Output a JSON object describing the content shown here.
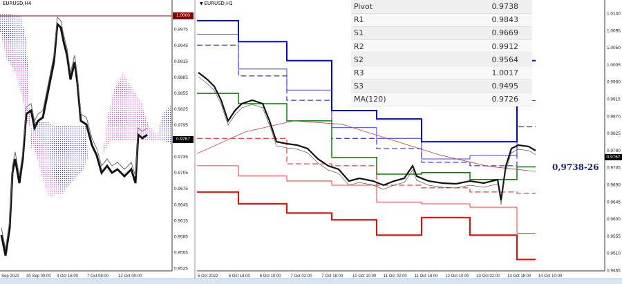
{
  "left_chart": {
    "title": "EURUSD,H4",
    "y_ticks": [
      "0.9975",
      "0.9945",
      "0.9915",
      "0.9885",
      "0.9855",
      "0.9825",
      "0.9795",
      "0.9735",
      "0.9705",
      "0.9675",
      "0.9645",
      "0.9615",
      "0.9585",
      "0.9555",
      "0.9525"
    ],
    "x_ticks": [
      "Sep 2022",
      "30 Sep 00:00",
      "4 Oct 16:00",
      "7 Oct 08:00",
      "12 Oct 00:00"
    ],
    "level_label": "1.0000",
    "current_price": "0.9767",
    "colors": {
      "level_line": "#c08080",
      "cloud_bull": "#0000ff",
      "cloud_bear": "#ff00ff"
    }
  },
  "right_chart": {
    "title": "EURUSD,H1",
    "y_ticks": [
      "1.0140",
      "1.0095",
      "1.0050",
      "1.0005",
      "0.9960",
      "0.9915",
      "0.9870",
      "0.9825",
      "0.9780",
      "0.9735",
      "0.9690",
      "0.9645",
      "0.9600",
      "0.9555",
      "0.9510",
      "0.9465"
    ],
    "x_ticks": [
      "5 Oct 2022",
      "5 Oct 18:00",
      "6 Oct 10:00",
      "7 Oct 02:00",
      "7 Oct 18:00",
      "10 Oct 10:00",
      "11 Oct 02:00",
      "11 Oct 18:00",
      "12 Oct 10:00",
      "13 Oct 02:00",
      "13 Oct 18:00",
      "14 Oct 10:00"
    ],
    "current_price": "0.9767",
    "range_label": "0,9738-26",
    "pivot_table": [
      {
        "label": "Pivot",
        "value": "0.9738"
      },
      {
        "label": "R1",
        "value": "0.9843"
      },
      {
        "label": "S1",
        "value": "0.9669"
      },
      {
        "label": "R2",
        "value": "0.9912"
      },
      {
        "label": "S2",
        "value": "0.9564"
      },
      {
        "label": "R3",
        "value": "1.0017"
      },
      {
        "label": "S3",
        "value": "0.9495"
      },
      {
        "label": "MA(120)",
        "value": "0.9726"
      }
    ]
  },
  "chart_data": {
    "type": "line",
    "title": "EURUSD,H1",
    "ylim": [
      0.9465,
      1.014
    ],
    "series": [
      {
        "name": "R3",
        "color": "#0000ff",
        "values": [
          1.0122,
          1.0067,
          1.0017,
          0.9886,
          0.9864,
          0.9804,
          0.9804,
          1.0017
        ]
      },
      {
        "name": "R2",
        "color": "#0000ff",
        "values": [
          1.0086,
          0.9995,
          0.994,
          0.9841,
          0.9813,
          0.9759,
          0.9768,
          0.9912
        ]
      },
      {
        "name": "R1",
        "color": "#0000ff",
        "values": [
          1.0058,
          0.9977,
          0.9913,
          0.9813,
          0.9786,
          0.975,
          0.9741,
          0.9843
        ]
      },
      {
        "name": "Pivot",
        "color": "#008000",
        "values": [
          0.9931,
          0.9904,
          0.9859,
          0.9763,
          0.9719,
          0.9723,
          0.9705,
          0.9738
        ]
      },
      {
        "name": "S1",
        "color": "#ff0000",
        "values": [
          0.9813,
          0.9813,
          0.9746,
          0.9741,
          0.969,
          0.9683,
          0.9672,
          0.9669
        ]
      },
      {
        "name": "S2",
        "color": "#ff0000",
        "values": [
          0.9741,
          0.9714,
          0.9701,
          0.969,
          0.9646,
          0.9641,
          0.9632,
          0.9564
        ]
      },
      {
        "name": "S3",
        "color": "#ff0000",
        "values": [
          0.9672,
          0.9641,
          0.9617,
          0.9599,
          0.9559,
          0.9605,
          0.9559,
          0.9495
        ]
      },
      {
        "name": "MA(120)",
        "color": "#c04040",
        "values": [
          0.9773,
          0.983,
          0.9859,
          0.985,
          0.981,
          0.977,
          0.974,
          0.9726
        ]
      }
    ]
  }
}
